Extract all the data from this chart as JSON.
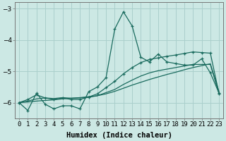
{
  "xlabel": "Humidex (Indice chaleur)",
  "background_color": "#cce8e4",
  "grid_color": "#aacfcc",
  "line_color": "#1a6b5e",
  "x_values": [
    0,
    1,
    2,
    3,
    4,
    5,
    6,
    7,
    8,
    9,
    10,
    11,
    12,
    13,
    14,
    15,
    16,
    17,
    18,
    19,
    20,
    21,
    22,
    23
  ],
  "series1": [
    -6.0,
    -6.25,
    -5.7,
    -6.05,
    -6.2,
    -6.1,
    -6.1,
    -6.2,
    -5.65,
    -5.5,
    -5.2,
    -3.65,
    -3.1,
    -3.55,
    -4.55,
    -4.7,
    -4.45,
    -4.7,
    -4.75,
    -4.8,
    -4.8,
    -4.6,
    -5.05,
    -5.7
  ],
  "series2": [
    -6.0,
    -5.9,
    -5.75,
    -5.85,
    -5.9,
    -5.85,
    -5.9,
    -5.9,
    -5.82,
    -5.72,
    -5.52,
    -5.32,
    -5.08,
    -4.88,
    -4.72,
    -4.62,
    -4.57,
    -4.52,
    -4.48,
    -4.43,
    -4.38,
    -4.4,
    -4.42,
    -5.72
  ],
  "series3": [
    -6.0,
    -5.95,
    -5.88,
    -5.85,
    -5.87,
    -5.84,
    -5.86,
    -5.85,
    -5.83,
    -5.78,
    -5.68,
    -5.58,
    -5.42,
    -5.28,
    -5.15,
    -5.05,
    -4.98,
    -4.93,
    -4.88,
    -4.83,
    -4.78,
    -4.78,
    -4.78,
    -5.72
  ],
  "series4": [
    -6.0,
    -5.98,
    -5.95,
    -5.93,
    -5.91,
    -5.88,
    -5.86,
    -5.84,
    -5.81,
    -5.78,
    -5.72,
    -5.64,
    -5.54,
    -5.44,
    -5.35,
    -5.26,
    -5.18,
    -5.1,
    -5.03,
    -4.95,
    -4.88,
    -4.82,
    -4.76,
    -5.65
  ],
  "ylim": [
    -6.5,
    -2.8
  ],
  "yticks": [
    -6,
    -5,
    -4,
    -3
  ],
  "xlim": [
    -0.5,
    23.5
  ],
  "axis_fontsize": 7.5,
  "tick_fontsize": 6.5
}
